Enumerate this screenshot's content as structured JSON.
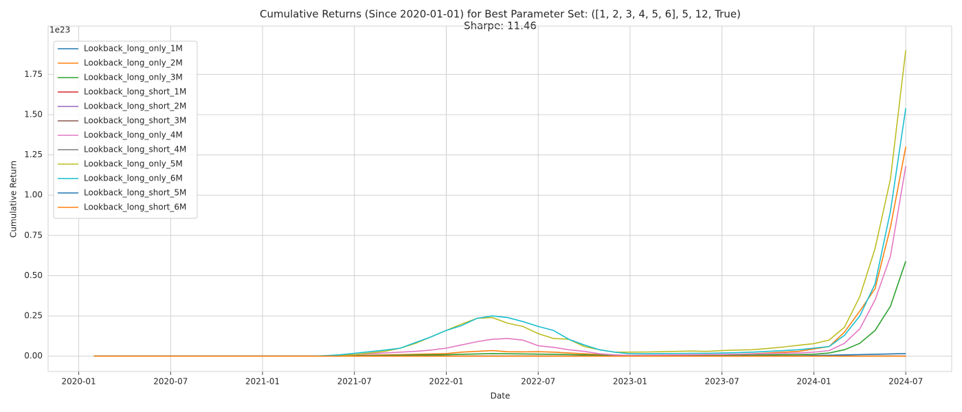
{
  "chart_data": {
    "type": "line",
    "title": "Cumulative Returns (Since 2020-01-01) for Best Parameter Set: ([1, 2, 3, 4, 5, 6], 5, 12, True)",
    "subtitle": "Sharpe: 11.46",
    "x_label": "Date",
    "y_label": "Cumulative Return",
    "y_offset_label": "1e23",
    "grid": true,
    "legend": "upper left",
    "xlim": [
      "2019-11",
      "2024-10"
    ],
    "xticks": [
      "2020-01",
      "2020-07",
      "2021-01",
      "2021-07",
      "2022-01",
      "2022-07",
      "2023-01",
      "2023-07",
      "2024-01",
      "2024-07"
    ],
    "ylim": [
      -0.095,
      2.05
    ],
    "yticks": [
      {
        "value": 0,
        "label": "0.00"
      },
      0.25,
      {
        "value": 0.5,
        "label": "0.50"
      },
      0.75,
      {
        "value": 1,
        "label": "1.00"
      },
      1.25,
      {
        "value": 1.5,
        "label": "1.50"
      },
      1.75
    ],
    "x": [
      "2020-02",
      "2020-03",
      "2020-04",
      "2020-05",
      "2020-06",
      "2020-07",
      "2020-08",
      "2020-09",
      "2020-10",
      "2020-11",
      "2020-12",
      "2021-01",
      "2021-02",
      "2021-03",
      "2021-04",
      "2021-05",
      "2021-06",
      "2021-07",
      "2021-08",
      "2021-09",
      "2021-10",
      "2021-11",
      "2021-12",
      "2022-01",
      "2022-02",
      "2022-03",
      "2022-04",
      "2022-05",
      "2022-06",
      "2022-07",
      "2022-08",
      "2022-09",
      "2022-10",
      "2022-11",
      "2022-12",
      "2023-01",
      "2023-02",
      "2023-03",
      "2023-04",
      "2023-05",
      "2023-06",
      "2023-07",
      "2023-08",
      "2023-09",
      "2023-10",
      "2023-11",
      "2023-12",
      "2024-01",
      "2024-02",
      "2024-03",
      "2024-04",
      "2024-05",
      "2024-06",
      "2024-07"
    ],
    "series": [
      {
        "name": "Lookback_long_only_1M",
        "color": "#1f77b4",
        "values": [
          0,
          0,
          0,
          0,
          0,
          0,
          0,
          0,
          0,
          0,
          0,
          0,
          0,
          0,
          0,
          0,
          0,
          0,
          0,
          0,
          0,
          0,
          0,
          0,
          0,
          0,
          0,
          0,
          0,
          0,
          0,
          0,
          0,
          0,
          0,
          0,
          0,
          0,
          0,
          0,
          0,
          0,
          0,
          0,
          0,
          0.002,
          0.003,
          0.004,
          0.006,
          0.008,
          0.01,
          0.012,
          0.014,
          0.016
        ]
      },
      {
        "name": "Lookback_long_only_2M",
        "color": "#ff7f0e",
        "values": [
          0,
          0,
          0,
          0,
          0,
          0,
          0,
          0,
          0,
          0,
          0,
          0,
          0,
          0,
          0,
          0.001,
          0.002,
          0.004,
          0.006,
          0.008,
          0.01,
          0.012,
          0.014,
          0.016,
          0.025,
          0.03,
          0.035,
          0.028,
          0.027,
          0.028,
          0.025,
          0.02,
          0.015,
          0.01,
          0.005,
          0.003,
          0.004,
          0.005,
          0.006,
          0.007,
          0.008,
          0.01,
          0.012,
          0.015,
          0.02,
          0.025,
          0.03,
          0.045,
          0.06,
          0.15,
          0.28,
          0.42,
          0.8,
          1.3
        ]
      },
      {
        "name": "Lookback_long_only_3M",
        "color": "#2ca02c",
        "values": [
          0,
          0,
          0,
          0,
          0,
          0,
          0,
          0,
          0,
          0,
          0,
          0,
          0,
          0,
          0,
          0.001,
          0.002,
          0.003,
          0.004,
          0.005,
          0.006,
          0.007,
          0.008,
          0.009,
          0.012,
          0.014,
          0.016,
          0.015,
          0.014,
          0.013,
          0.012,
          0.01,
          0.008,
          0.006,
          0.004,
          0.003,
          0.003,
          0.004,
          0.004,
          0.005,
          0.005,
          0.006,
          0.006,
          0.007,
          0.008,
          0.009,
          0.01,
          0.012,
          0.02,
          0.04,
          0.08,
          0.16,
          0.31,
          0.59
        ]
      },
      {
        "name": "Lookback_long_short_1M",
        "color": "#d62728",
        "values": [
          0,
          0,
          0,
          0,
          0,
          0,
          0,
          0,
          0,
          0,
          0,
          0,
          0,
          0,
          0,
          0,
          0,
          0,
          0,
          0,
          0,
          0,
          0,
          0,
          0,
          0,
          0,
          0,
          0,
          0,
          0,
          0,
          0,
          0,
          0,
          0,
          0,
          0,
          0,
          0,
          0,
          0,
          0,
          0,
          0,
          0,
          0,
          0,
          0,
          0,
          0,
          0,
          0,
          0
        ]
      },
      {
        "name": "Lookback_long_short_2M",
        "color": "#9467bd",
        "values": [
          0,
          0,
          0,
          0,
          0,
          0,
          0,
          0,
          0,
          0,
          0,
          0,
          0,
          0,
          0,
          0,
          0,
          0,
          0,
          0,
          0,
          0,
          0,
          0,
          0,
          0,
          0,
          0,
          0,
          0,
          0,
          0,
          0,
          0,
          0,
          0,
          0,
          0,
          0,
          0,
          0,
          0,
          0,
          0,
          0,
          0,
          0,
          0,
          0,
          0,
          0,
          0,
          0,
          0
        ]
      },
      {
        "name": "Lookback_long_short_3M",
        "color": "#8c564b",
        "values": [
          0,
          0,
          0,
          0,
          0,
          0,
          0,
          0,
          0,
          0,
          0,
          0,
          0,
          0,
          0,
          0,
          0,
          0,
          0,
          0,
          0,
          0,
          0,
          0,
          0,
          0,
          0,
          0,
          0,
          0,
          0,
          0,
          0,
          0,
          0,
          0,
          0,
          0,
          0,
          0,
          0,
          0,
          0,
          0,
          0,
          0,
          0,
          0,
          0,
          0,
          0,
          0,
          0,
          0
        ]
      },
      {
        "name": "Lookback_long_only_4M",
        "color": "#e377c2",
        "values": [
          0,
          0,
          0,
          0,
          0,
          0,
          0,
          0,
          0,
          0,
          0,
          0,
          0,
          0,
          0,
          0.002,
          0.005,
          0.01,
          0.015,
          0.02,
          0.025,
          0.03,
          0.038,
          0.05,
          0.07,
          0.09,
          0.105,
          0.11,
          0.1,
          0.065,
          0.055,
          0.04,
          0.03,
          0.015,
          0.008,
          0.005,
          0.006,
          0.007,
          0.008,
          0.009,
          0.01,
          0.011,
          0.012,
          0.014,
          0.016,
          0.018,
          0.02,
          0.025,
          0.035,
          0.08,
          0.17,
          0.35,
          0.62,
          1.18
        ]
      },
      {
        "name": "Lookback_long_short_4M",
        "color": "#7f7f7f",
        "values": [
          0,
          0,
          0,
          0,
          0,
          0,
          0,
          0,
          0,
          0,
          0,
          0,
          0,
          0,
          0,
          0,
          0,
          0,
          0,
          0,
          0,
          0,
          0,
          0,
          0,
          0,
          0,
          0,
          0,
          0,
          0,
          0,
          0,
          0,
          0,
          0,
          0,
          0,
          0,
          0,
          0,
          0,
          0,
          0,
          0,
          0,
          0,
          0,
          0,
          0,
          0,
          0,
          0,
          0
        ]
      },
      {
        "name": "Lookback_long_only_5M",
        "color": "#bcbd22",
        "values": [
          0,
          0,
          0,
          0,
          0,
          0,
          0,
          0,
          0,
          0,
          0,
          0,
          0,
          0,
          0,
          0.002,
          0.005,
          0.01,
          0.02,
          0.03,
          0.05,
          0.08,
          0.12,
          0.16,
          0.2,
          0.235,
          0.24,
          0.205,
          0.185,
          0.14,
          0.11,
          0.105,
          0.06,
          0.04,
          0.025,
          0.025,
          0.026,
          0.028,
          0.03,
          0.032,
          0.03,
          0.035,
          0.038,
          0.04,
          0.048,
          0.057,
          0.068,
          0.078,
          0.1,
          0.18,
          0.37,
          0.67,
          1.1,
          1.9
        ]
      },
      {
        "name": "Lookback_long_only_6M",
        "color": "#17becf",
        "values": [
          0,
          0,
          0,
          0,
          0,
          0,
          0,
          0,
          0,
          0,
          0,
          0,
          0,
          0,
          0,
          0.003,
          0.008,
          0.018,
          0.028,
          0.038,
          0.05,
          0.085,
          0.12,
          0.16,
          0.19,
          0.235,
          0.25,
          0.24,
          0.215,
          0.185,
          0.16,
          0.105,
          0.07,
          0.04,
          0.025,
          0.015,
          0.015,
          0.016,
          0.017,
          0.018,
          0.018,
          0.02,
          0.022,
          0.025,
          0.03,
          0.035,
          0.04,
          0.05,
          0.06,
          0.13,
          0.25,
          0.45,
          0.9,
          1.54
        ]
      },
      {
        "name": "Lookback_long_short_5M",
        "color": "#1f77b4",
        "values": [
          0,
          0,
          0,
          0,
          0,
          0,
          0,
          0,
          0,
          0,
          0,
          0,
          0,
          0,
          0,
          0,
          0,
          0,
          0,
          0,
          0,
          0,
          0,
          0,
          0,
          0,
          0,
          0,
          0,
          0,
          0,
          0,
          0,
          0,
          0,
          0,
          0,
          0,
          0,
          0,
          0,
          0,
          0,
          0,
          0,
          0,
          0,
          0,
          0,
          0,
          0,
          0,
          0,
          0
        ]
      },
      {
        "name": "Lookback_long_short_6M",
        "color": "#ff7f0e",
        "values": [
          0,
          0,
          0,
          0,
          0,
          0,
          0,
          0,
          0,
          0,
          0,
          0,
          0,
          0,
          0,
          0,
          0,
          0,
          0,
          0,
          0,
          0,
          0,
          0,
          0,
          0,
          0,
          0,
          0,
          0,
          0,
          0,
          0,
          0,
          0,
          0,
          0,
          0,
          0,
          0,
          0,
          0,
          0,
          0,
          0,
          0,
          0,
          0,
          0,
          0,
          0,
          0,
          0,
          0
        ]
      }
    ]
  }
}
